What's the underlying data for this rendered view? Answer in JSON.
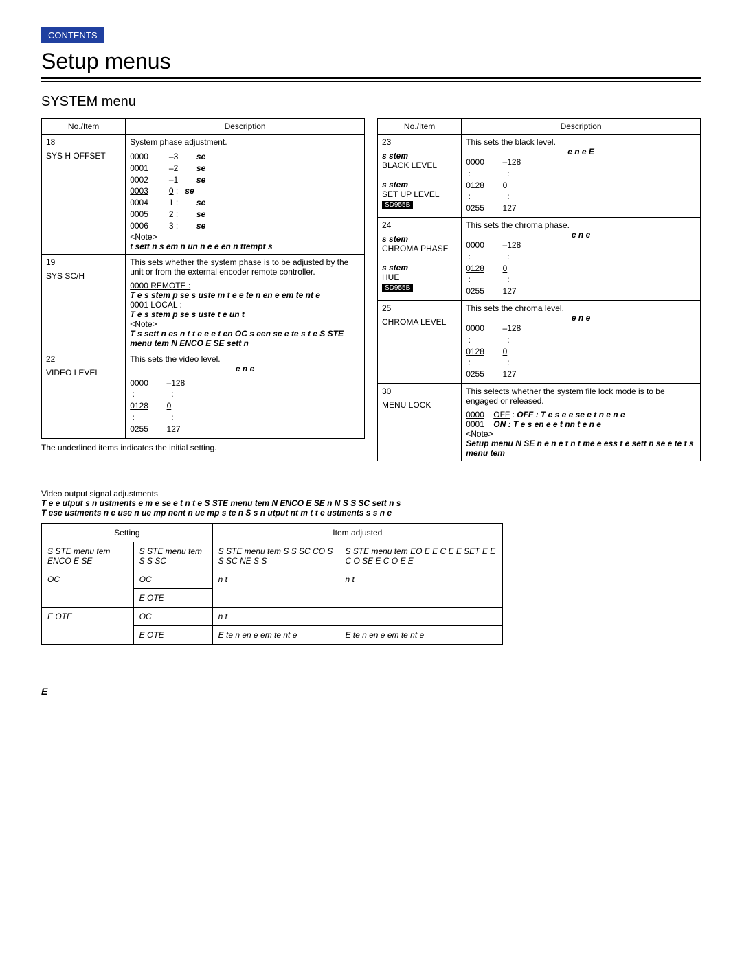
{
  "header": {
    "contents_label": "CONTENTS",
    "page_title": "Setup menus",
    "section_title": "SYSTEM menu"
  },
  "left_table": {
    "head_no": "No./Item",
    "head_desc": "Description",
    "rows": [
      {
        "no": "18",
        "item": "SYS H OFFSET",
        "desc_lead": "System phase adjustment.",
        "values": [
          [
            "0000",
            "–3",
            "se"
          ],
          [
            "0001",
            "–2",
            "se"
          ],
          [
            "0002",
            "–1",
            "se"
          ],
          [
            "0003",
            "0 :",
            "se",
            true
          ],
          [
            "0004",
            "1 :",
            "se"
          ],
          [
            "0005",
            "2 :",
            "se"
          ],
          [
            "0006",
            "3 :",
            "se"
          ]
        ],
        "note": "<Note>",
        "note_ital": "t    sett n  s     em  n un    n  e  e en    n  ttempt s"
      },
      {
        "no": "19",
        "item": "SYS SC/H",
        "desc_lead": "This sets whether the system phase is to be adjusted by the unit or from the external encoder remote controller.",
        "opt0": "0000 REMOTE :",
        "opt0_ital": "T  e  s  stem p    se  s      uste      m  t  e e te n  en    e  em te    nt    e",
        "opt1": "0001   LOCAL :",
        "opt1_ital": "T  e s  stem p   se s     uste    t  e un t",
        "note": "<Note>",
        "note_ital": "T  s sett n    es n  t t   e e  e t    en  OC  s  een se e te   s  t  e S  STE  menu  tem N     ENCO E  SE   sett n"
      },
      {
        "no": "22",
        "item": "VIDEO LEVEL",
        "desc_lead": "This sets the video level.",
        "sub_ital": "e   n  e",
        "values": [
          [
            "0000",
            "–128"
          ],
          [
            " :",
            " :"
          ],
          [
            "0128",
            "0",
            true
          ],
          [
            " :",
            " :"
          ],
          [
            "0255",
            "127"
          ]
        ]
      }
    ]
  },
  "under_left_note": "The underlined items indicates the initial setting.",
  "right_table": {
    "head_no": "No./Item",
    "head_desc": "Description",
    "rows": [
      {
        "no": "23",
        "item_lines": [
          "s  stem",
          "BLACK LEVEL",
          "",
          "s  stem",
          "SET UP LEVEL"
        ],
        "tag": "SD955B",
        "desc_lead": "This sets the black level.",
        "sub_ital": "e   n  e      E",
        "values": [
          [
            "0000",
            "–128"
          ],
          [
            " :",
            " :"
          ],
          [
            "0128",
            "0",
            true
          ],
          [
            " :",
            " :"
          ],
          [
            "0255",
            "127"
          ]
        ]
      },
      {
        "no": "24",
        "item_lines": [
          "s  stem",
          "CHROMA PHASE",
          "",
          "s  stem",
          "HUE"
        ],
        "tag": "SD955B",
        "desc_lead": "This sets the chroma phase.",
        "sub_ital": "e   n  e",
        "values": [
          [
            "0000",
            "–128"
          ],
          [
            " :",
            " :"
          ],
          [
            "0128",
            "0",
            true
          ],
          [
            " :",
            " :"
          ],
          [
            "0255",
            "127"
          ]
        ]
      },
      {
        "no": "25",
        "item": "CHROMA LEVEL",
        "desc_lead": "This sets the chroma level.",
        "sub_ital": "e   n  e",
        "values": [
          [
            "0000",
            "–128"
          ],
          [
            " :",
            " :"
          ],
          [
            "0128",
            "0",
            true
          ],
          [
            " :",
            " :"
          ],
          [
            "0255",
            "127"
          ]
        ]
      },
      {
        "no": "30",
        "item": "MENU LOCK",
        "desc_lead": "This selects whether the system file lock mode is to be engaged or released.",
        "opt0": "0000",
        "opt0_tail": "OFF : T  e     s  e e  se     e   t  n  e    n  e",
        "opt1": "0001",
        "opt1_tail": "ON : T  e     s  en    e     e   t  nn  t   e    n  e",
        "note": "<Note>",
        "note_ital": "Setup menu N        SE    n  e    n  e t  n  t me e     ess    t  e sett n  se e te   t  s menu  tem"
      }
    ]
  },
  "video_adj": {
    "title": "Video output signal adjustments",
    "ital1": "T  e    e   utput s  n    ustments  e m  e   se e t n  t e S  STE   menu  tem N     ENCO E  SE    n N    S  S SC   sett n s",
    "ital2": "T  ese    ustments  n  e use    n   ue  mp nent  n   ue  mp s te n  S  s n    utput  nt  m t    t  e   ustments s s   n  e",
    "head_setting": "Setting",
    "head_item": "Item adjusted",
    "headers": [
      "S  STE   menu  tem ENCO E  SE",
      "S  STE   menu  tem S  S SC",
      "S  STE   menu  tem S  S SC CO  S  S SC  NE S  S",
      "S  STE   menu  tem EO  E E C    E E  SET    E E C  O    SE  E C  O    E E"
    ],
    "rows": [
      {
        "c1": "OC",
        "c2a": "OC",
        "c2b": "E  OTE",
        "c3": "n t",
        "c4": "n t"
      },
      {
        "c1": "E  OTE",
        "c2a": "OC",
        "c2b": "E  OTE",
        "c3a": "n t",
        "c3b": "E te n    en    e    em te  nt   e",
        "c4a": "",
        "c4b": "E te n  en    e  em te   nt    e"
      }
    ]
  },
  "page_num": "E"
}
